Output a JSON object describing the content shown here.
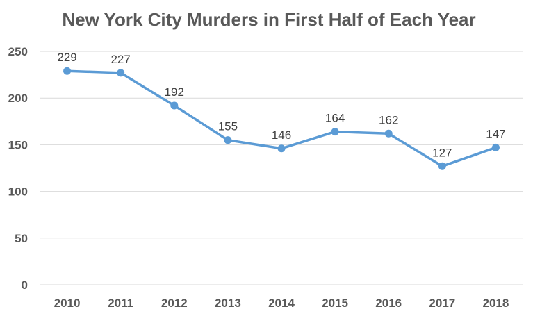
{
  "chart_data": {
    "type": "line",
    "title": "New York City Murders in First Half of Each Year",
    "categories": [
      "2010",
      "2011",
      "2012",
      "2013",
      "2014",
      "2015",
      "2016",
      "2017",
      "2018"
    ],
    "series": [
      {
        "values": [
          229,
          227,
          192,
          155,
          146,
          164,
          162,
          127,
          147
        ]
      }
    ],
    "ylim": [
      0,
      250
    ],
    "yticks": [
      0,
      50,
      100,
      150,
      200,
      250
    ],
    "grid": true,
    "data_labels": true,
    "line_color": "#5b9bd5"
  }
}
